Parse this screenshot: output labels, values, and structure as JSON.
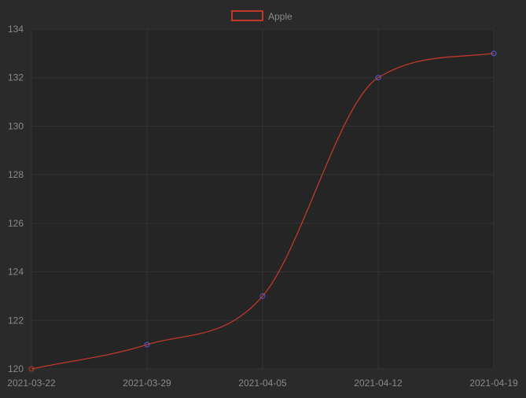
{
  "chart_data": {
    "type": "line",
    "title": "",
    "xlabel": "",
    "ylabel": "",
    "x": [
      "2021-03-22",
      "2021-03-29",
      "2021-04-05",
      "2021-04-12",
      "2021-04-19"
    ],
    "series": [
      {
        "name": "Apple",
        "values": [
          120,
          121,
          123,
          132,
          133
        ],
        "color": "#c0392b",
        "point_color": "#5b5bd6"
      }
    ],
    "ylim": [
      120,
      134
    ],
    "y_ticks": [
      120,
      122,
      124,
      126,
      128,
      130,
      132,
      134
    ],
    "grid": true,
    "legend": "top-center",
    "background": "#2a2a2a",
    "plot_background": "#252525",
    "grid_color": "#333333"
  }
}
